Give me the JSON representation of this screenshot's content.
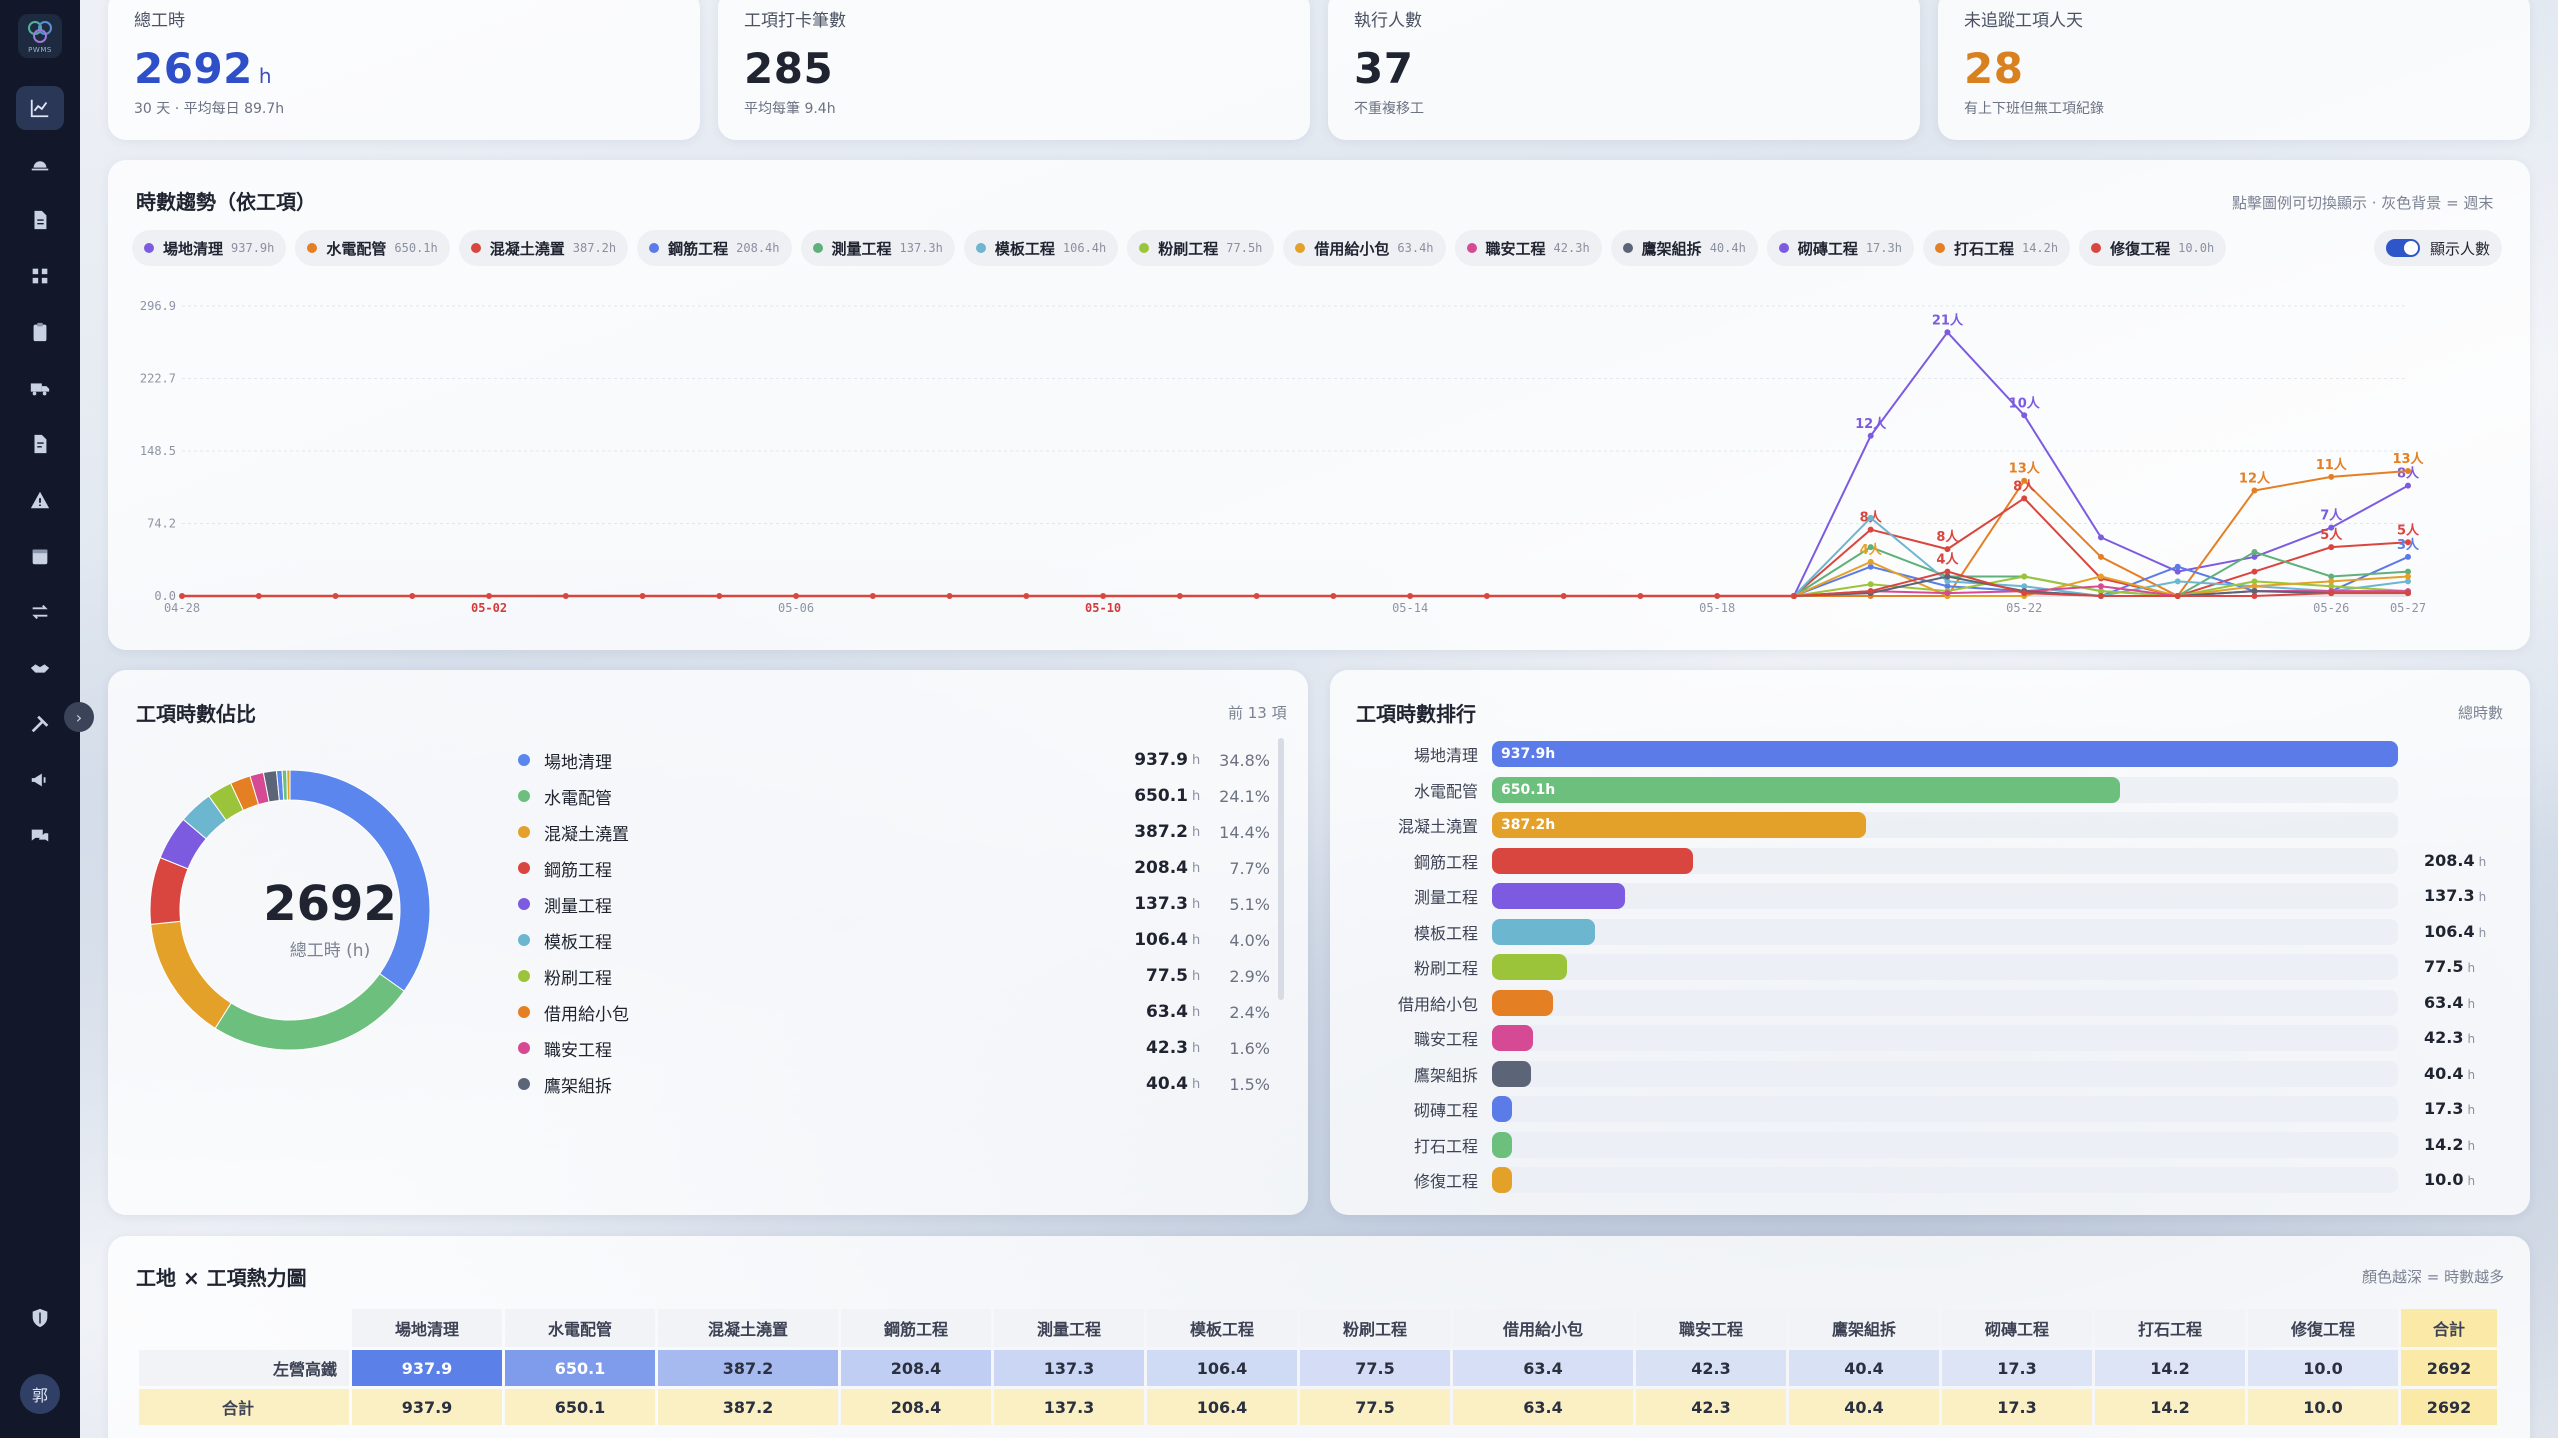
{
  "app": {
    "logo_text": "PWMS",
    "avatar": "郭"
  },
  "kpis": [
    {
      "label": "總工時",
      "value": "2692",
      "unit": "h",
      "sub": "30 天 · 平均每日 89.7h",
      "color": "#2f4fc9"
    },
    {
      "label": "工項打卡筆數",
      "value": "285",
      "unit": "",
      "sub": "平均每筆 9.4h",
      "color": "#1f2430"
    },
    {
      "label": "執行人數",
      "value": "37",
      "unit": "",
      "sub": "不重複移工",
      "color": "#1f2430"
    },
    {
      "label": "未追蹤工項人天",
      "value": "28",
      "unit": "",
      "sub": "有上下班但無工項紀錄",
      "color": "#d9801f"
    }
  ],
  "trend": {
    "title": "時數趨勢（依工項）",
    "note": "點擊圖例可切換顯示 · 灰色背景 = 週末",
    "toggle_label": "顯示人數",
    "legend": [
      {
        "name": "場地清理",
        "hours": "937.9h",
        "color": "#7c5be0"
      },
      {
        "name": "水電配管",
        "hours": "650.1h",
        "color": "#e57f24"
      },
      {
        "name": "混凝土澆置",
        "hours": "387.2h",
        "color": "#d9463f"
      },
      {
        "name": "鋼筋工程",
        "hours": "208.4h",
        "color": "#5b7be8"
      },
      {
        "name": "測量工程",
        "hours": "137.3h",
        "color": "#5fb07a"
      },
      {
        "name": "模板工程",
        "hours": "106.4h",
        "color": "#6cb6d0"
      },
      {
        "name": "粉刷工程",
        "hours": "77.5h",
        "color": "#9cc43a"
      },
      {
        "name": "借用給小包",
        "hours": "63.4h",
        "color": "#e3a12a"
      },
      {
        "name": "職安工程",
        "hours": "42.3h",
        "color": "#d64a94"
      },
      {
        "name": "鷹架組拆",
        "hours": "40.4h",
        "color": "#5c6478"
      },
      {
        "name": "砌磚工程",
        "hours": "17.3h",
        "color": "#7c5be0"
      },
      {
        "name": "打石工程",
        "hours": "14.2h",
        "color": "#e57f24"
      },
      {
        "name": "修復工程",
        "hours": "10.0h",
        "color": "#d9463f"
      }
    ]
  },
  "chart_data": {
    "type": "line",
    "y_ticks": [
      "296.9",
      "222.7",
      "148.5",
      "74.2",
      "0.0"
    ],
    "ylim": [
      0,
      296.9
    ],
    "x": [
      "04-28",
      "04-29",
      "04-30",
      "05-01",
      "05-02",
      "05-03",
      "05-04",
      "05-05",
      "05-06",
      "05-07",
      "05-08",
      "05-09",
      "05-10",
      "05-11",
      "05-12",
      "05-13",
      "05-14",
      "05-15",
      "05-16",
      "05-17",
      "05-18",
      "05-19",
      "05-20",
      "05-21",
      "05-22",
      "05-23",
      "05-24",
      "05-25",
      "05-26",
      "05-27"
    ],
    "x_tick_labels": [
      {
        "i": 0,
        "text": "04-28",
        "red": false
      },
      {
        "i": 4,
        "text": "05-02",
        "red": true
      },
      {
        "i": 8,
        "text": "05-06",
        "red": false
      },
      {
        "i": 12,
        "text": "05-10",
        "red": true
      },
      {
        "i": 16,
        "text": "05-14",
        "red": false
      },
      {
        "i": 20,
        "text": "05-18",
        "red": false
      },
      {
        "i": 24,
        "text": "05-22",
        "red": false
      },
      {
        "i": 28,
        "text": "05-26",
        "red": false
      },
      {
        "i": 29,
        "text": "05-27",
        "red": false
      }
    ],
    "series": [
      {
        "name": "場地清理",
        "color": "#7c5be0",
        "y": {
          "21": 0,
          "22": 164,
          "23": 270,
          "24": 185,
          "25": 60,
          "26": 25,
          "27": 40,
          "28": 70,
          "29": 113
        },
        "labels": {
          "22": "12人",
          "23": "21人",
          "24": "10人",
          "28": "7人",
          "29": "8人"
        }
      },
      {
        "name": "水電配管",
        "color": "#e57f24",
        "y": {
          "21": 0,
          "22": 0,
          "23": 0,
          "24": 118,
          "25": 40,
          "26": 0,
          "27": 108,
          "28": 122,
          "29": 128
        },
        "labels": {
          "24": "13人",
          "27": "12人",
          "28": "11人",
          "29": "13人"
        }
      },
      {
        "name": "混凝土澆置",
        "color": "#d9463f",
        "y": {
          "21": 0,
          "22": 68,
          "23": 48,
          "24": 100,
          "25": 18,
          "26": 0,
          "27": 25,
          "28": 50,
          "29": 55
        },
        "labels": {
          "22": "8人",
          "23": "8人",
          "24": "8人",
          "28": "5人",
          "29": "5人"
        }
      },
      {
        "name": "鋼筋工程",
        "color": "#5b7be8",
        "y": {
          "21": 0,
          "22": 30,
          "23": 10,
          "24": 5,
          "25": 0,
          "26": 30,
          "27": 5,
          "28": 5,
          "29": 40
        },
        "labels": {
          "29": "3人"
        }
      },
      {
        "name": "測量工程",
        "color": "#5fb07a",
        "y": {
          "21": 0,
          "22": 50,
          "23": 20,
          "24": 20,
          "25": 5,
          "26": 0,
          "27": 45,
          "28": 20,
          "29": 25
        }
      },
      {
        "name": "模板工程",
        "color": "#6cb6d0",
        "y": {
          "21": 0,
          "22": 80,
          "23": 15,
          "24": 10,
          "25": 0,
          "26": 15,
          "27": 10,
          "28": 5,
          "29": 15
        }
      },
      {
        "name": "粉刷工程",
        "color": "#9cc43a",
        "y": {
          "21": 0,
          "22": 12,
          "23": 5,
          "24": 20,
          "25": 5,
          "26": 0,
          "27": 15,
          "28": 10,
          "29": 5
        }
      },
      {
        "name": "借用給小包",
        "color": "#e3a12a",
        "y": {
          "21": 0,
          "22": 35,
          "23": 0,
          "24": 0,
          "25": 20,
          "26": 0,
          "27": 10,
          "28": 15,
          "29": 20
        },
        "labels": {
          "22": "4人"
        }
      },
      {
        "name": "職安工程",
        "color": "#d64a94",
        "y": {
          "21": 0,
          "22": 5,
          "23": 3,
          "24": 5,
          "25": 10,
          "26": 0,
          "27": 5,
          "28": 5,
          "29": 5
        }
      },
      {
        "name": "鷹架組拆",
        "color": "#5c6478",
        "y": {
          "21": 0,
          "22": 3,
          "23": 20,
          "24": 5,
          "25": 0,
          "26": 0,
          "27": 5,
          "28": 3,
          "29": 3
        }
      },
      {
        "name": "修復工程",
        "color": "#d9463f",
        "y": {
          "21": 0,
          "22": 5,
          "23": 25,
          "24": 3,
          "25": 0,
          "26": 0,
          "27": 0,
          "28": 3,
          "29": 3
        },
        "labels": {
          "23": "4人"
        }
      }
    ]
  },
  "share": {
    "title": "工項時數佔比",
    "note": "前 13 項",
    "center_value": "2692",
    "center_label": "總工時 (h)",
    "unit": "h",
    "items": [
      {
        "name": "場地清理",
        "hours": "937.9",
        "pct": "34.8%",
        "value": 937.9,
        "color": "#5b86ee"
      },
      {
        "name": "水電配管",
        "hours": "650.1",
        "pct": "24.1%",
        "value": 650.1,
        "color": "#6cbf7d"
      },
      {
        "name": "混凝土澆置",
        "hours": "387.2",
        "pct": "14.4%",
        "value": 387.2,
        "color": "#e3a12a"
      },
      {
        "name": "鋼筋工程",
        "hours": "208.4",
        "pct": "7.7%",
        "value": 208.4,
        "color": "#d9463f"
      },
      {
        "name": "測量工程",
        "hours": "137.3",
        "pct": "5.1%",
        "value": 137.3,
        "color": "#7c5be0"
      },
      {
        "name": "模板工程",
        "hours": "106.4",
        "pct": "4.0%",
        "value": 106.4,
        "color": "#6cb6d0"
      },
      {
        "name": "粉刷工程",
        "hours": "77.5",
        "pct": "2.9%",
        "value": 77.5,
        "color": "#9cc43a"
      },
      {
        "name": "借用給小包",
        "hours": "63.4",
        "pct": "2.4%",
        "value": 63.4,
        "color": "#e57f24"
      },
      {
        "name": "職安工程",
        "hours": "42.3",
        "pct": "1.6%",
        "value": 42.3,
        "color": "#d64a94"
      },
      {
        "name": "鷹架組拆",
        "hours": "40.4",
        "pct": "1.5%",
        "value": 40.4,
        "color": "#5c6478"
      },
      {
        "name": "砌磚工程",
        "hours": "17.3",
        "pct": "",
        "value": 17.3,
        "color": "#5b86ee"
      },
      {
        "name": "打石工程",
        "hours": "14.2",
        "pct": "",
        "value": 14.2,
        "color": "#6cbf7d"
      },
      {
        "name": "修復工程",
        "hours": "10.0",
        "pct": "",
        "value": 10.0,
        "color": "#e3a12a"
      }
    ]
  },
  "ranking": {
    "title": "工項時數排行",
    "note": "總時數",
    "max": 937.9,
    "unit": "h",
    "items": [
      {
        "name": "場地清理",
        "value": 937.9,
        "label": "937.9h",
        "text": "937.9",
        "color": "#5b7be8",
        "inside": true
      },
      {
        "name": "水電配管",
        "value": 650.1,
        "label": "650.1h",
        "text": "650.1",
        "color": "#6cbf7d",
        "inside": true
      },
      {
        "name": "混凝土澆置",
        "value": 387.2,
        "label": "387.2h",
        "text": "387.2",
        "color": "#e3a12a",
        "inside": true
      },
      {
        "name": "鋼筋工程",
        "value": 208.4,
        "label": "",
        "text": "208.4",
        "color": "#d9463f",
        "inside": false
      },
      {
        "name": "測量工程",
        "value": 137.3,
        "label": "",
        "text": "137.3",
        "color": "#7c5be0",
        "inside": false
      },
      {
        "name": "模板工程",
        "value": 106.4,
        "label": "",
        "text": "106.4",
        "color": "#6cb6d0",
        "inside": false
      },
      {
        "name": "粉刷工程",
        "value": 77.5,
        "label": "",
        "text": "77.5",
        "color": "#9cc43a",
        "inside": false
      },
      {
        "name": "借用給小包",
        "value": 63.4,
        "label": "",
        "text": "63.4",
        "color": "#e57f24",
        "inside": false
      },
      {
        "name": "職安工程",
        "value": 42.3,
        "label": "",
        "text": "42.3",
        "color": "#d64a94",
        "inside": false
      },
      {
        "name": "鷹架組拆",
        "value": 40.4,
        "label": "",
        "text": "40.4",
        "color": "#5c6478",
        "inside": false
      },
      {
        "name": "砌磚工程",
        "value": 17.3,
        "label": "",
        "text": "17.3",
        "color": "#5b7be8",
        "inside": false
      },
      {
        "name": "打石工程",
        "value": 14.2,
        "label": "",
        "text": "14.2",
        "color": "#6cbf7d",
        "inside": false
      },
      {
        "name": "修復工程",
        "value": 10.0,
        "label": "",
        "text": "10.0",
        "color": "#e3a12a",
        "inside": false
      }
    ]
  },
  "heatmap": {
    "title": "工地 × 工項熱力圖",
    "note": "顏色越深 = 時數越多",
    "columns": [
      "場地清理",
      "水電配管",
      "混凝土澆置",
      "鋼筋工程",
      "測量工程",
      "模板工程",
      "粉刷工程",
      "借用給小包",
      "職安工程",
      "鷹架組拆",
      "砌磚工程",
      "打石工程",
      "修復工程",
      "合計"
    ],
    "rows": [
      {
        "site": "左營高鐵",
        "values": [
          "937.9",
          "650.1",
          "387.2",
          "208.4",
          "137.3",
          "106.4",
          "77.5",
          "63.4",
          "42.3",
          "40.4",
          "17.3",
          "14.2",
          "10.0",
          "2692"
        ]
      },
      {
        "site": "合計",
        "values": [
          "937.9",
          "650.1",
          "387.2",
          "208.4",
          "137.3",
          "106.4",
          "77.5",
          "63.4",
          "42.3",
          "40.4",
          "17.3",
          "14.2",
          "10.0",
          "2692"
        ]
      }
    ],
    "max": 937.9
  }
}
